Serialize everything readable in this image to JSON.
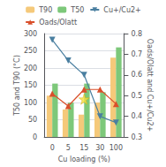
{
  "chart_data": {
    "type": "bar",
    "categories": [
      "0",
      "5",
      "15",
      "30",
      "100"
    ],
    "xlabel": "Cu loading (%)",
    "ylabel": "T50 and T90 (°C)",
    "y2label": "Oads/Olatt and Cu+/Cu2+",
    "series": [
      {
        "name": "T90",
        "type": "bar",
        "color": "#f5c97a",
        "values": [
          120,
          80,
          65,
          100,
          230
        ]
      },
      {
        "name": "T50",
        "type": "bar",
        "color": "#7dc87a",
        "values": [
          155,
          100,
          155,
          130,
          260
        ]
      },
      {
        "name": "Cu+/Cu2+",
        "type": "line",
        "axis": "y2",
        "color": "#4a7fa0",
        "marker": "triangle_down",
        "values": [
          0.77,
          0.67,
          0.6,
          0.4,
          0.37
        ]
      },
      {
        "name": "Oads/Olatt",
        "type": "line",
        "axis": "y2",
        "color": "#d94f2b",
        "marker": "triangle_up",
        "values": [
          0.51,
          0.45,
          0.53,
          0.53,
          0.46
        ]
      },
      {
        "type": "scatter",
        "color": "#f5e040",
        "marker": "star",
        "values": [
          null,
          null,
          110,
          null,
          null
        ]
      }
    ],
    "ylim": [
      0,
      300
    ],
    "yticks": [
      0,
      50,
      100,
      150,
      200,
      250,
      300
    ],
    "y2lim": [
      0.3,
      0.8
    ],
    "y2ticks": [
      0.3,
      0.4,
      0.5,
      0.6,
      0.7,
      0.8
    ],
    "grid": true,
    "legend": "top"
  }
}
